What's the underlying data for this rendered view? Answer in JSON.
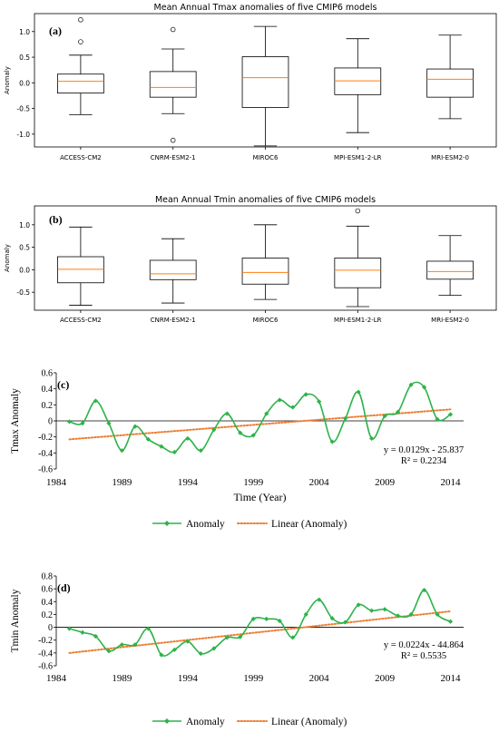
{
  "chart_data": [
    {
      "type": "box",
      "panel_label": "(a)",
      "title": "Mean Annual Tmax anomalies of five CMIP6 models",
      "ylabel": "Anomaly",
      "ylim": [
        -1.25,
        1.35
      ],
      "yticks": [
        "-1.0",
        "-0.5",
        "0.0",
        "0.5",
        "1.0"
      ],
      "ytick_values": [
        -1.0,
        -0.5,
        0.0,
        0.5,
        1.0
      ],
      "categories": [
        "ACCESS-CM2",
        "CNRM-ESM2-1",
        "MIROC6",
        "MPI-ESM1-2-LR",
        "MRI-ESM2-0"
      ],
      "boxes": [
        {
          "whislo": -0.62,
          "q1": -0.2,
          "med": 0.03,
          "q3": 0.17,
          "whishi": 0.54,
          "fliers": [
            0.8,
            1.23
          ]
        },
        {
          "whislo": -0.6,
          "q1": -0.28,
          "med": -0.09,
          "q3": 0.22,
          "whishi": 0.66,
          "fliers": [
            1.04,
            -1.12
          ]
        },
        {
          "whislo": -1.23,
          "q1": -0.48,
          "med": 0.1,
          "q3": 0.51,
          "whishi": 1.1,
          "fliers": []
        },
        {
          "whislo": -0.97,
          "q1": -0.23,
          "med": 0.04,
          "q3": 0.29,
          "whishi": 0.86,
          "fliers": []
        },
        {
          "whislo": -0.7,
          "q1": -0.28,
          "med": 0.07,
          "q3": 0.27,
          "whishi": 0.93,
          "fliers": []
        }
      ]
    },
    {
      "type": "box",
      "panel_label": "(b)",
      "title": "Mean Annual Tmin anomalies of five CMIP6 models",
      "ylabel": "Anomaly",
      "ylim": [
        -0.9,
        1.42
      ],
      "yticks": [
        "-0.5",
        "0.0",
        "0.5",
        "1.0"
      ],
      "ytick_values": [
        -0.5,
        0.0,
        0.5,
        1.0
      ],
      "categories": [
        "ACCESS-CM2",
        "CNRM-ESM2-1",
        "MIROC6",
        "MPI-ESM1-2-LR",
        "MRI-ESM2-0"
      ],
      "boxes": [
        {
          "whislo": -0.79,
          "q1": -0.29,
          "med": 0.01,
          "q3": 0.29,
          "whishi": 0.95,
          "fliers": []
        },
        {
          "whislo": -0.74,
          "q1": -0.22,
          "med": -0.09,
          "q3": 0.21,
          "whishi": 0.69,
          "fliers": []
        },
        {
          "whislo": -0.66,
          "q1": -0.32,
          "med": -0.06,
          "q3": 0.26,
          "whishi": 1.0,
          "fliers": []
        },
        {
          "whislo": -0.82,
          "q1": -0.4,
          "med": -0.01,
          "q3": 0.26,
          "whishi": 0.97,
          "fliers": [
            1.31
          ]
        },
        {
          "whislo": -0.57,
          "q1": -0.21,
          "med": -0.04,
          "q3": 0.19,
          "whishi": 0.76,
          "fliers": []
        }
      ]
    },
    {
      "type": "line",
      "panel_label": "(c)",
      "xlabel": "Time (Year)",
      "ylabel": "Tmax Anomaly",
      "xlim": [
        1984,
        2015
      ],
      "ylim": [
        -0.6,
        0.6
      ],
      "xticks": [
        1984,
        1989,
        1994,
        1999,
        2004,
        2009,
        2014
      ],
      "yticks": [
        -0.6,
        -0.4,
        -0.2,
        0,
        0.2,
        0.4,
        0.6
      ],
      "x": [
        1985,
        1986,
        1987,
        1988,
        1989,
        1990,
        1991,
        1992,
        1993,
        1994,
        1995,
        1996,
        1997,
        1998,
        1999,
        2000,
        2001,
        2002,
        2003,
        2004,
        2005,
        2006,
        2007,
        2008,
        2009,
        2010,
        2011,
        2012,
        2013,
        2014
      ],
      "series": [
        {
          "name": "Anomaly",
          "values": [
            -0.01,
            -0.03,
            0.25,
            -0.03,
            -0.37,
            -0.07,
            -0.23,
            -0.32,
            -0.39,
            -0.22,
            -0.37,
            -0.11,
            0.09,
            -0.15,
            -0.18,
            0.09,
            0.26,
            0.17,
            0.33,
            0.24,
            -0.26,
            0.03,
            0.36,
            -0.22,
            0.06,
            0.11,
            0.45,
            0.42,
            0.02,
            0.08
          ]
        }
      ],
      "trend": {
        "name": "Linear (Anomaly)",
        "slope": 0.0129,
        "intercept": -25.837
      },
      "equation": "y = 0.0129x - 25.837",
      "r2": "R² = 0.2234"
    },
    {
      "type": "line",
      "panel_label": "(d)",
      "xlabel": "",
      "ylabel": "Tmin Anomaly",
      "xlim": [
        1984,
        2015
      ],
      "ylim": [
        -0.6,
        0.8
      ],
      "xticks": [
        1984,
        1989,
        1994,
        1999,
        2004,
        2009,
        2014
      ],
      "yticks": [
        -0.6,
        -0.4,
        -0.2,
        0,
        0.2,
        0.4,
        0.6,
        0.8
      ],
      "x": [
        1985,
        1986,
        1987,
        1988,
        1989,
        1990,
        1991,
        1992,
        1993,
        1994,
        1995,
        1996,
        1997,
        1998,
        1999,
        2000,
        2001,
        2002,
        2003,
        2004,
        2005,
        2006,
        2007,
        2008,
        2009,
        2010,
        2011,
        2012,
        2013,
        2014
      ],
      "series": [
        {
          "name": "Anomaly",
          "values": [
            -0.02,
            -0.08,
            -0.14,
            -0.37,
            -0.27,
            -0.27,
            -0.02,
            -0.43,
            -0.35,
            -0.22,
            -0.41,
            -0.33,
            -0.16,
            -0.15,
            0.13,
            0.13,
            0.1,
            -0.16,
            0.2,
            0.43,
            0.14,
            0.08,
            0.35,
            0.26,
            0.28,
            0.18,
            0.2,
            0.58,
            0.2,
            0.09
          ]
        }
      ],
      "trend": {
        "name": "Linear (Anomaly)",
        "slope": 0.0224,
        "intercept": -44.864
      },
      "equation": "y = 0.0224x - 44.864",
      "r2": "R² = 0.5535"
    }
  ],
  "colors": {
    "box_line": "#000000",
    "median": "#ff7f0e",
    "series_line": "#2db34a",
    "trend_line": "#ed7d31",
    "text": "#000000"
  }
}
